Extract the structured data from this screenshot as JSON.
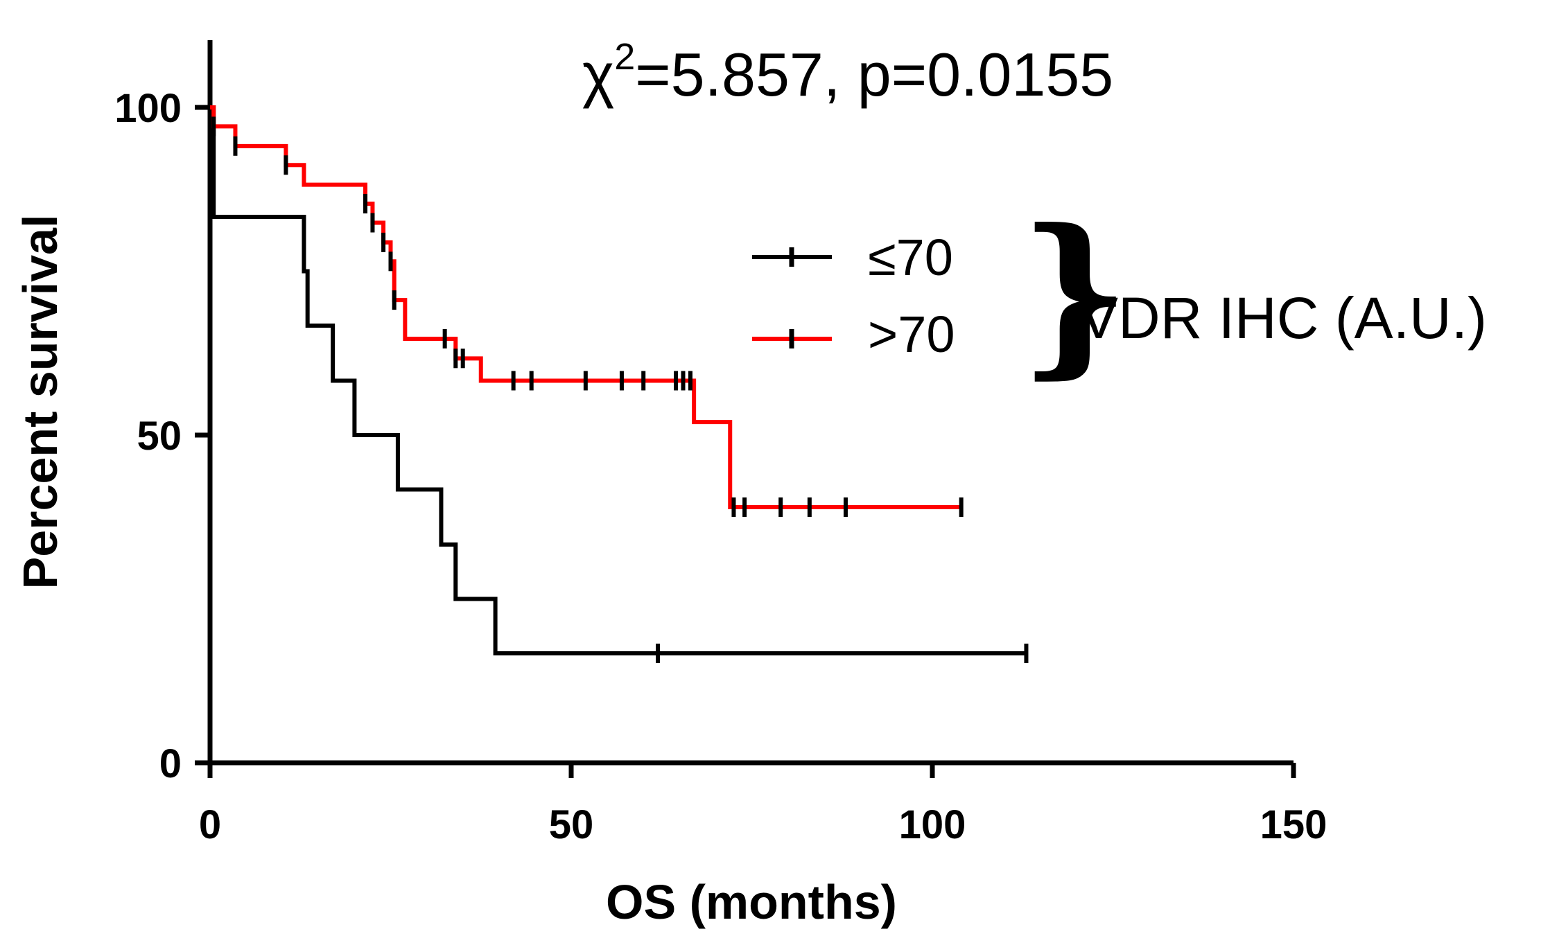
{
  "chart_data": {
    "type": "line",
    "subtype": "kaplan-meier",
    "xlabel": "OS (months)",
    "ylabel": "Percent survival",
    "xlim": [
      0,
      150
    ],
    "ylim": [
      0,
      100
    ],
    "xticks": [
      "0",
      "50",
      "100",
      "150"
    ],
    "yticks": [
      "0",
      "50",
      "100"
    ],
    "annotation": {
      "chi_symbol": "χ",
      "chi_exp": "2",
      "text": "=5.857, p=0.0155"
    },
    "group_label": "VDR IHC (A.U.)",
    "series": [
      {
        "name": "≤70",
        "color": "#000000",
        "steps": [
          [
            0,
            100
          ],
          [
            0.5,
            83.3
          ],
          [
            13,
            75
          ],
          [
            13.5,
            66.7
          ],
          [
            17,
            58.3
          ],
          [
            20,
            50
          ],
          [
            26,
            41.7
          ],
          [
            32,
            33.3
          ],
          [
            34,
            25
          ],
          [
            39.5,
            16.7
          ],
          [
            113,
            16.7
          ]
        ],
        "censored": [
          [
            62,
            16.7
          ],
          [
            113,
            16.7
          ]
        ]
      },
      {
        "name": ">70",
        "color": "#ff0000",
        "steps": [
          [
            0,
            100
          ],
          [
            0.5,
            97.1
          ],
          [
            3.5,
            94.1
          ],
          [
            10.5,
            91.2
          ],
          [
            13,
            88.2
          ],
          [
            21.5,
            85.3
          ],
          [
            22.5,
            82.4
          ],
          [
            24,
            79.4
          ],
          [
            25,
            76.5
          ],
          [
            25.5,
            70.6
          ],
          [
            27,
            64.7
          ],
          [
            34,
            61.7
          ],
          [
            37.5,
            58.3
          ],
          [
            67,
            52
          ],
          [
            72,
            39
          ],
          [
            104,
            39
          ]
        ],
        "censored": [
          [
            0.5,
            97.1
          ],
          [
            3.5,
            94.1
          ],
          [
            10.5,
            91.2
          ],
          [
            21.5,
            85.3
          ],
          [
            22.5,
            82.4
          ],
          [
            24,
            79.4
          ],
          [
            25,
            76.5
          ],
          [
            25.5,
            70.6
          ],
          [
            32.5,
            64.7
          ],
          [
            34,
            61.7
          ],
          [
            35,
            61.7
          ],
          [
            42,
            58.3
          ],
          [
            44.5,
            58.3
          ],
          [
            52,
            58.3
          ],
          [
            57,
            58.3
          ],
          [
            60,
            58.3
          ],
          [
            64.5,
            58.3
          ],
          [
            65.5,
            58.3
          ],
          [
            66.5,
            58.3
          ],
          [
            72.5,
            39
          ],
          [
            74,
            39
          ],
          [
            79,
            39
          ],
          [
            83,
            39
          ],
          [
            88,
            39
          ],
          [
            104,
            39
          ]
        ]
      }
    ]
  }
}
